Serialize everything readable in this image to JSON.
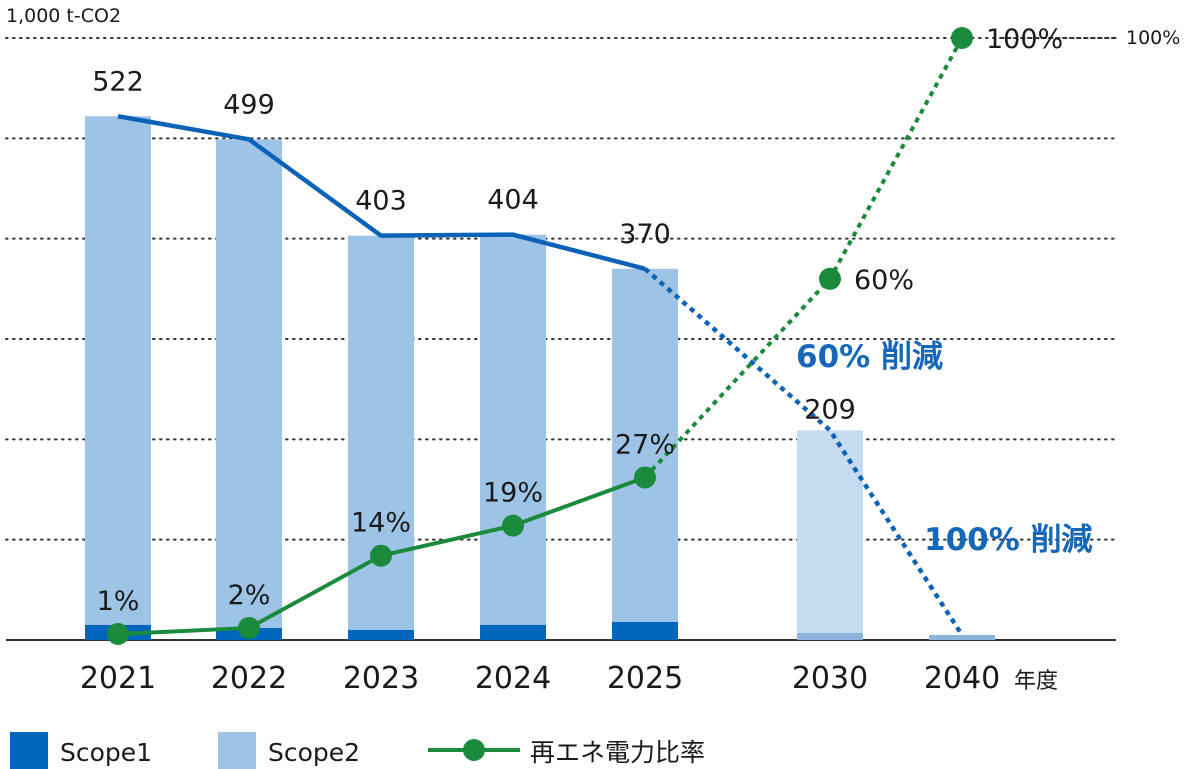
{
  "chart_data": {
    "type": "bar",
    "unit_label": "1,000 t-CO2",
    "right_axis_label": "100%",
    "x_axis_suffix": "年度",
    "ylim": [
      0,
      600
    ],
    "right_ylim": [
      0,
      100
    ],
    "grid": "dotted horizontal",
    "categories": [
      "2021",
      "2022",
      "2023",
      "2024",
      "2025",
      "2030",
      "2040"
    ],
    "totals": [
      "522",
      "499",
      "403",
      "404",
      "370",
      "209",
      ""
    ],
    "series": [
      {
        "name": "Scope1",
        "values": [
          15,
          12,
          10,
          15,
          18,
          7,
          5
        ],
        "color": "#0066bd"
      },
      {
        "name": "Scope2",
        "values": [
          507,
          487,
          393,
          389,
          352,
          202,
          0
        ],
        "color": "#9dc3e6"
      }
    ],
    "target_bar_color": "#c5dbef",
    "total_trend": {
      "values": [
        522,
        499,
        403,
        404,
        370,
        209,
        5
      ],
      "color": "#0b63b8",
      "projected_from": "2025"
    },
    "renewable_ratio": {
      "name": "再エネ電力比率",
      "values": [
        1,
        2,
        14,
        19,
        27,
        60,
        100
      ],
      "labels": [
        "1%",
        "2%",
        "14%",
        "19%",
        "27%",
        "60%",
        "100%"
      ],
      "color": "#1a8a3c",
      "projected_from": "2025"
    },
    "annotations": [
      {
        "text": "60% 削減",
        "color": "#1467b9"
      },
      {
        "text": "100% 削減",
        "color": "#1467b9"
      }
    ],
    "legend": "bottom-left"
  }
}
